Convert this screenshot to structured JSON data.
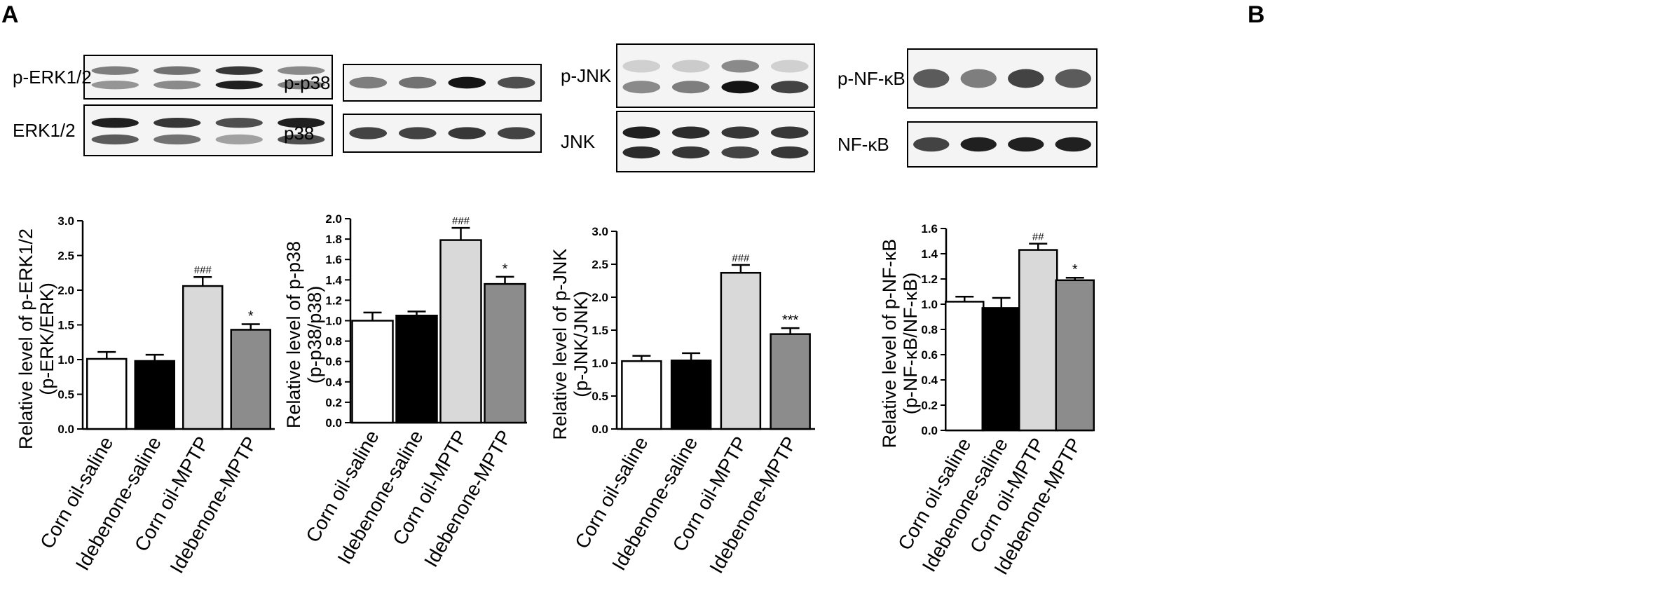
{
  "panel_labels": [
    "A",
    "B"
  ],
  "categories": [
    "Corn oil-saline",
    "Idebenone-saline",
    "Corn oil-MPTP",
    "Idebenone-MPTP"
  ],
  "bar_colors": [
    "#ffffff",
    "#000000",
    "#d9d9d9",
    "#8c8c8c"
  ],
  "chart_data": [
    {
      "type": "bar",
      "blot_labels": [
        "p-ERK1/2",
        "ERK1/2"
      ],
      "categories": [
        "Corn oil-saline",
        "Idebenone-saline",
        "Corn oil-MPTP",
        "Idebenone-MPTP"
      ],
      "values": [
        1.01,
        0.98,
        2.06,
        1.43
      ],
      "errors": [
        0.1,
        0.09,
        0.13,
        0.08
      ],
      "significance": [
        "",
        "",
        "###",
        "*"
      ],
      "ylabel_line1": "Relative level of p-ERK1/2",
      "ylabel_line2": "(p-ERK/ERK)",
      "ylim": [
        0,
        3.0
      ],
      "yticks": [
        "0.0",
        "0.5",
        "1.0",
        "1.5",
        "2.0",
        "2.5",
        "3.0"
      ],
      "grid": false
    },
    {
      "type": "bar",
      "blot_labels": [
        "p-p38",
        "p38"
      ],
      "categories": [
        "Corn oil-saline",
        "Idebenone-saline",
        "Corn oil-MPTP",
        "Idebenone-MPTP"
      ],
      "values": [
        1.0,
        1.05,
        1.79,
        1.36
      ],
      "errors": [
        0.08,
        0.04,
        0.12,
        0.07
      ],
      "significance": [
        "",
        "",
        "###",
        "*"
      ],
      "ylabel_line1": "Relative level of p-p38",
      "ylabel_line2": "(p-p38/p38)",
      "ylim": [
        0,
        2.0
      ],
      "yticks": [
        "0.0",
        "0.2",
        "0.4",
        "0.6",
        "0.8",
        "1.0",
        "1.2",
        "1.4",
        "1.6",
        "1.8",
        "2.0"
      ],
      "grid": false
    },
    {
      "type": "bar",
      "blot_labels": [
        "p-JNK",
        "JNK"
      ],
      "categories": [
        "Corn oil-saline",
        "Idebenone-saline",
        "Corn oil-MPTP",
        "Idebenone-MPTP"
      ],
      "values": [
        1.03,
        1.04,
        2.37,
        1.44
      ],
      "errors": [
        0.08,
        0.11,
        0.12,
        0.09
      ],
      "significance": [
        "",
        "",
        "###",
        "***"
      ],
      "ylabel_line1": "Relative level of p-JNK",
      "ylabel_line2": "(p-JNK/JNK)",
      "ylim": [
        0,
        3.0
      ],
      "yticks": [
        "0.0",
        "0.5",
        "1.0",
        "1.5",
        "2.0",
        "2.5",
        "3.0"
      ],
      "grid": false
    },
    {
      "type": "bar",
      "blot_labels": [
        "p-NF-κB",
        "NF-κB"
      ],
      "categories": [
        "Corn oil-saline",
        "Idebenone-saline",
        "Corn oil-MPTP",
        "Idebenone-MPTP"
      ],
      "values": [
        1.02,
        0.97,
        1.43,
        1.19
      ],
      "errors": [
        0.04,
        0.08,
        0.05,
        0.02
      ],
      "significance": [
        "",
        "",
        "##",
        "*"
      ],
      "ylabel_line1": "Relative level of  p-NF-κB",
      "ylabel_line2": "(p-NF-κB/NF-κB)",
      "ylim": [
        0,
        1.6
      ],
      "yticks": [
        "0.0",
        "0.2",
        "0.4",
        "0.6",
        "0.8",
        "1.0",
        "1.2",
        "1.4",
        "1.6"
      ],
      "grid": false
    }
  ]
}
